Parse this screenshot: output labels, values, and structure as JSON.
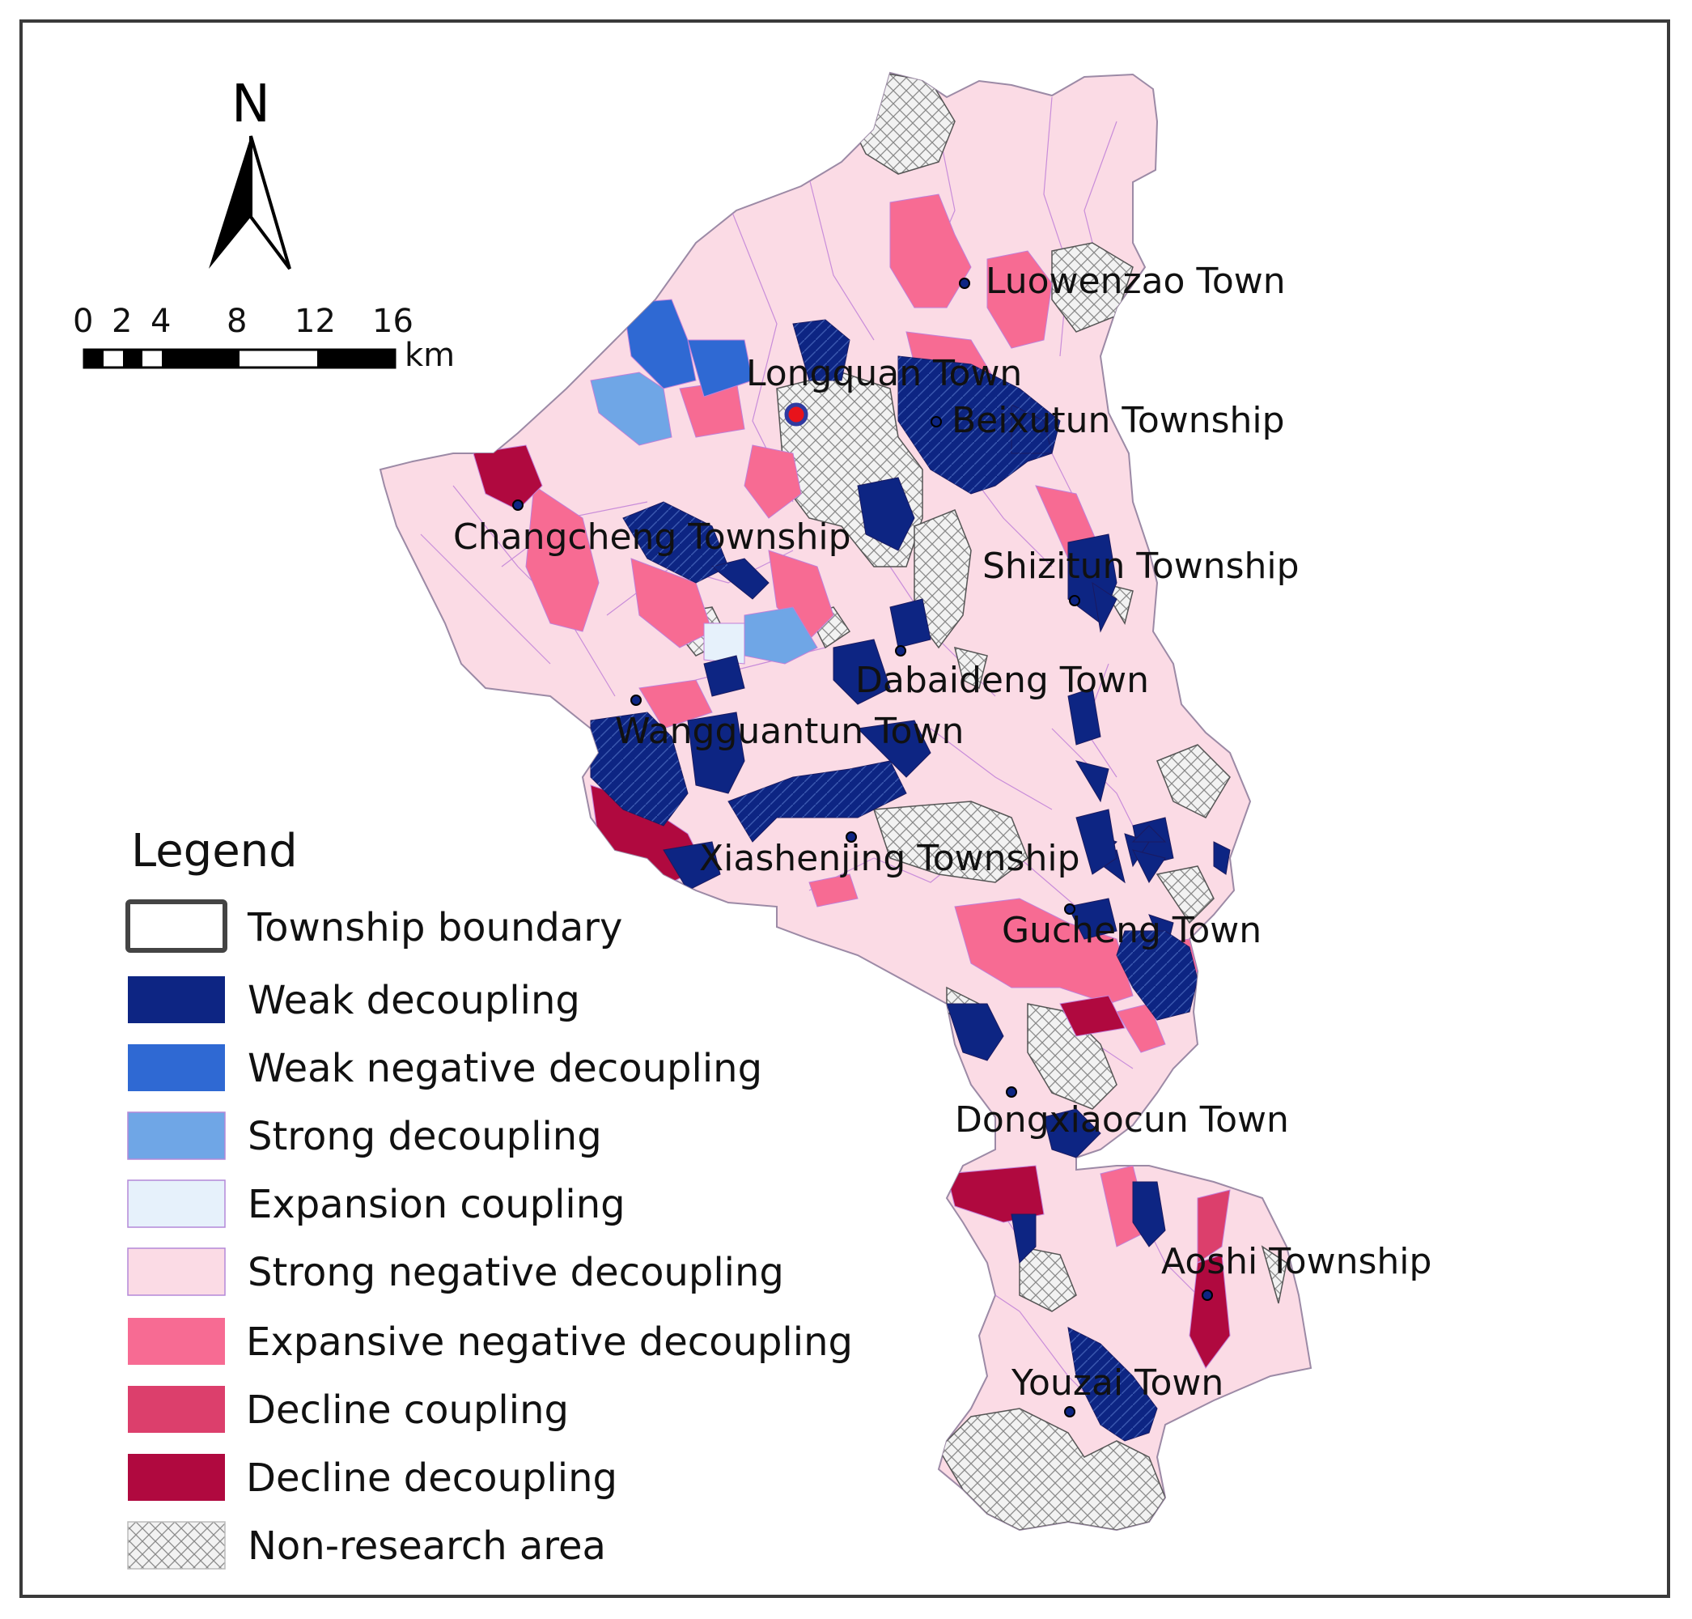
{
  "north_arrow": {
    "letter": "N"
  },
  "scale_bar": {
    "ticks": [
      "0",
      "2",
      "4",
      "8",
      "12",
      "16"
    ],
    "unit": "km"
  },
  "towns": [
    {
      "name": "Luowenzao Town"
    },
    {
      "name": "Longquan Town",
      "seat": true
    },
    {
      "name": "Beixutun Township"
    },
    {
      "name": "Changcheng Township"
    },
    {
      "name": "Shizitun Township"
    },
    {
      "name": "Dabaideng Town"
    },
    {
      "name": "Wangguantun Town"
    },
    {
      "name": "Xiashenjing Township"
    },
    {
      "name": "Gucheng Town"
    },
    {
      "name": "Dongxiaocun Town"
    },
    {
      "name": "Aoshi Township"
    },
    {
      "name": "Youzai Town"
    }
  ],
  "legend": {
    "title": "Legend",
    "items": [
      {
        "label": "Township boundary",
        "style": "outline",
        "color": "#ffffff"
      },
      {
        "label": "Weak decoupling",
        "color": "#0d2583"
      },
      {
        "label": "Weak negative decoupling",
        "color": "#2f69d3"
      },
      {
        "label": "Strong decoupling",
        "color": "#6fa6e6"
      },
      {
        "label": "Expansion coupling",
        "color": "#e6f1fb"
      },
      {
        "label": "Strong negative decoupling",
        "color": "#fbdbe5"
      },
      {
        "label": "Expansive negative decoupling",
        "color": "#f76b93"
      },
      {
        "label": "Decline coupling",
        "color": "#dc3f6c"
      },
      {
        "label": "Decline decoupling",
        "color": "#b0093f"
      },
      {
        "label": "Non-research area",
        "style": "hatch",
        "color": "#eeeeee"
      }
    ]
  }
}
